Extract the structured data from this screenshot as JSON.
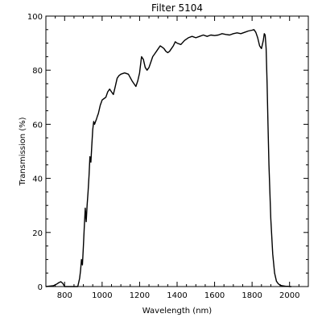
{
  "chart_data": {
    "type": "line",
    "title": "Filter 5104",
    "xlabel": "Wavelength (nm)",
    "ylabel": "Transmission (%)",
    "xlim": [
      700,
      2100
    ],
    "ylim": [
      0,
      100
    ],
    "x_ticks": [
      800,
      1000,
      1200,
      1400,
      1600,
      1800,
      2000
    ],
    "x_tick_labels": [
      "800",
      "1000",
      "1200",
      "1400",
      "1600",
      "1800",
      "2000"
    ],
    "y_ticks": [
      0,
      20,
      40,
      60,
      80,
      100
    ],
    "y_tick_labels": [
      "0",
      "20",
      "40",
      "60",
      "80",
      "100"
    ],
    "grid": false,
    "colors": {
      "line": "#000000",
      "axes": "#000000",
      "background": "#ffffff"
    },
    "series": [
      {
        "x": [
          700,
          740,
          760,
          770,
          780,
          790,
          800,
          820,
          840,
          860,
          870,
          880,
          885,
          890,
          895,
          900,
          905,
          910,
          915,
          920,
          925,
          930,
          935,
          940,
          945,
          950,
          955,
          960,
          965,
          970,
          975,
          980,
          990,
          1000,
          1010,
          1020,
          1030,
          1040,
          1050,
          1060,
          1070,
          1080,
          1090,
          1100,
          1120,
          1140,
          1160,
          1180,
          1190,
          1200,
          1210,
          1220,
          1230,
          1240,
          1250,
          1260,
          1270,
          1280,
          1290,
          1300,
          1310,
          1320,
          1330,
          1340,
          1350,
          1360,
          1370,
          1380,
          1390,
          1400,
          1420,
          1440,
          1460,
          1480,
          1500,
          1520,
          1540,
          1560,
          1580,
          1600,
          1620,
          1640,
          1660,
          1680,
          1700,
          1720,
          1740,
          1760,
          1780,
          1800,
          1810,
          1820,
          1830,
          1840,
          1850,
          1860,
          1865,
          1870,
          1875,
          1880,
          1885,
          1890,
          1900,
          1910,
          1920,
          1930,
          1940,
          1950,
          1960,
          1970,
          1980,
          1990,
          2000,
          2010
        ],
        "y": [
          0,
          0.3,
          1.0,
          1.5,
          1.8,
          1.2,
          0,
          0,
          0,
          0,
          0,
          3,
          6,
          10,
          8,
          15,
          22,
          29,
          24,
          30,
          35,
          41,
          48,
          46,
          52,
          58,
          61,
          60,
          61,
          62,
          63,
          64,
          67,
          69,
          69.5,
          70,
          72,
          73,
          72,
          71,
          74,
          77,
          78,
          78.5,
          79,
          78.5,
          76,
          74,
          76,
          79,
          85,
          84,
          81,
          80,
          81,
          83,
          85,
          86,
          87,
          88,
          89,
          88.5,
          88,
          87,
          86.5,
          87,
          88,
          89,
          90.5,
          90,
          89.5,
          91,
          92,
          92.5,
          92,
          92.5,
          93,
          92.5,
          93,
          92.8,
          93,
          93.5,
          93.2,
          93,
          93.5,
          93.8,
          93.5,
          94,
          94.5,
          94.8,
          95,
          94,
          92,
          89,
          88,
          91,
          93.5,
          93,
          88,
          75,
          60,
          45,
          25,
          12,
          5,
          2,
          1,
          0.5,
          0.3,
          0.2,
          0.1,
          0.1,
          0,
          0
        ]
      }
    ]
  }
}
